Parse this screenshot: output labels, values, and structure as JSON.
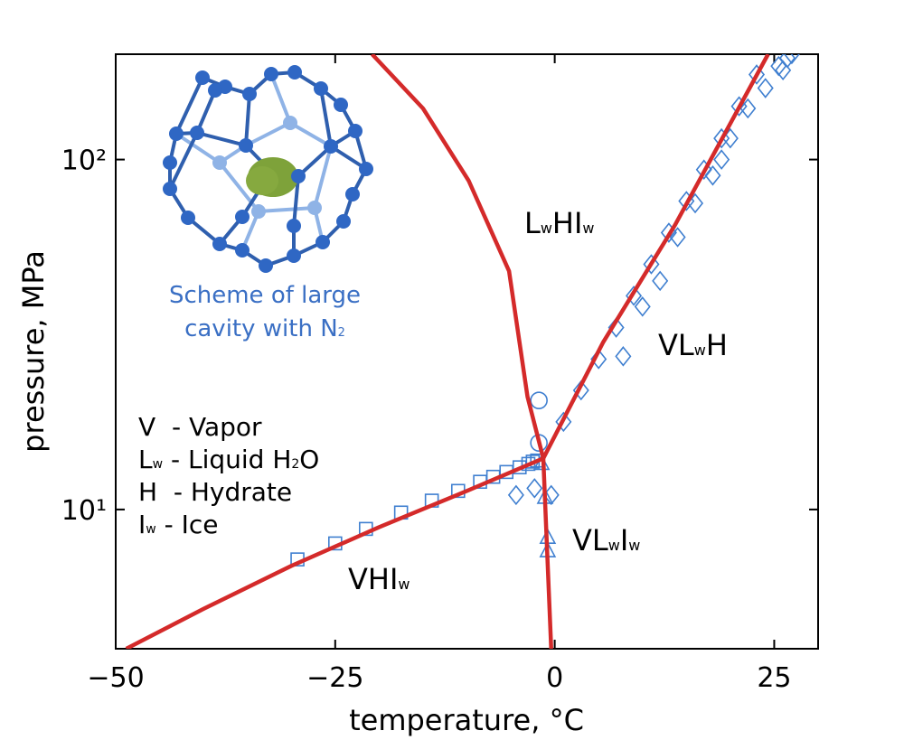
{
  "chart_data": {
    "type": "line",
    "xlabel": "temperature, °C",
    "ylabel": "pressure, MPa",
    "xlim": [
      -50,
      30
    ],
    "ylim": [
      4,
      200
    ],
    "ylog": true,
    "xticks": [
      {
        "value": -50,
        "label": "−50"
      },
      {
        "value": -25,
        "label": "−25"
      },
      0,
      25
    ],
    "yticks": [
      {
        "value": 10,
        "label": "10¹"
      },
      {
        "value": 100,
        "label": "10²"
      }
    ],
    "series": [
      {
        "kind": "line",
        "color": "#d42a2a",
        "x": [
          -48.8,
          -40,
          -30,
          -20,
          -10,
          -1.3
        ],
        "values": [
          4.0,
          5.2,
          6.9,
          8.9,
          11.3,
          14.0
        ]
      },
      {
        "kind": "line",
        "color": "#d42a2a",
        "x": [
          -0.4,
          -0.9,
          -1.3,
          -3.1,
          -5.2,
          -9.8,
          -15,
          -20.8
        ],
        "values": [
          4,
          8,
          14,
          21,
          48,
          87,
          140,
          200
        ]
      },
      {
        "kind": "line",
        "color": "#d42a2a",
        "x": [
          -1.3,
          5.5,
          13.7,
          24.3
        ],
        "values": [
          14.0,
          30,
          65,
          200
        ]
      },
      {
        "kind": "scatter",
        "marker": "square",
        "color": "#3f7fd0",
        "x": [
          -29.3,
          -25,
          -21.5,
          -17.5,
          -14,
          -11,
          -8.5,
          -7,
          -5.5,
          -4,
          -3,
          -2.5,
          -2
        ],
        "values": [
          7.2,
          8.0,
          8.8,
          9.8,
          10.6,
          11.3,
          12.0,
          12.4,
          12.8,
          13.2,
          13.5,
          13.7,
          13.8
        ]
      },
      {
        "kind": "scatter",
        "marker": "circle",
        "color": "#3f7fd0",
        "x": [
          -1.8,
          -1.8
        ],
        "values": [
          20.5,
          15.5
        ]
      },
      {
        "kind": "scatter",
        "marker": "triangle",
        "color": "#3f7fd0",
        "x": [
          -1.5,
          -1.1,
          -0.8,
          -0.8
        ],
        "values": [
          13.5,
          10.8,
          8.3,
          7.6
        ]
      },
      {
        "kind": "scatter",
        "marker": "diamond",
        "color": "#3f7fd0",
        "x": [
          -4.4,
          -2.3,
          -0.4,
          1,
          3,
          5,
          7,
          7.8,
          9,
          10,
          11,
          12,
          13,
          14,
          15,
          16,
          17,
          18,
          19,
          19,
          20,
          21,
          22,
          23,
          24,
          25.5,
          26,
          26.5,
          27
        ],
        "values": [
          11,
          11.5,
          11,
          17.8,
          21.9,
          26.9,
          33.1,
          27.4,
          40.8,
          38,
          50.2,
          45,
          61.8,
          60,
          76.1,
          75,
          93.6,
          90,
          115,
          100,
          115,
          142,
          140,
          175,
          160,
          185,
          180,
          195,
          200
        ]
      }
    ],
    "annotations": [
      {
        "parts": [
          "L",
          "w",
          "HI",
          "w"
        ]
      },
      {
        "parts": [
          "VL",
          "w",
          "H"
        ]
      },
      {
        "parts": [
          "VL",
          "w",
          "I",
          "w"
        ]
      },
      {
        "parts": [
          "VHI",
          "w"
        ]
      }
    ],
    "legend_text": [
      {
        "parts": [
          "V  - Vapor"
        ]
      },
      {
        "parts": [
          "L",
          "w",
          " - Liquid H",
          "2",
          "O"
        ]
      },
      {
        "parts": [
          "H  - Hydrate"
        ]
      },
      {
        "parts": [
          "I",
          "w",
          " - Ice"
        ]
      }
    ],
    "inset_caption": [
      {
        "parts": [
          "Scheme of large"
        ]
      },
      {
        "parts": [
          "cavity with N",
          "2"
        ]
      }
    ]
  }
}
